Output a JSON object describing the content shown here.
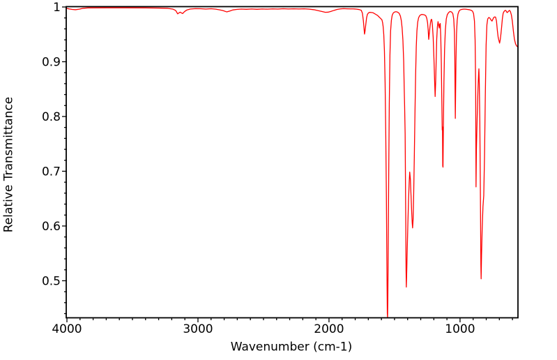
{
  "figure": {
    "background": "#ffffff",
    "frame_color": "#000000",
    "text_color": "#000000",
    "line_color": "#ff0000"
  },
  "chart_data": {
    "type": "line",
    "title": "",
    "xlabel": "Wavenumber (cm-1)",
    "ylabel": "Relative Transmittance",
    "grid": false,
    "legend": null,
    "x_axis": {
      "min": 558,
      "max": 4000,
      "reversed": true,
      "major_ticks": [
        4000,
        3000,
        2000,
        1000
      ],
      "major_tick_labels": [
        "4000",
        "3000",
        "2000",
        "1000"
      ],
      "minor_tick_step": 100
    },
    "y_axis": {
      "min": 0.433,
      "max": 1.0,
      "major_ticks": [
        1.0,
        0.9,
        0.8,
        0.7,
        0.6,
        0.5
      ],
      "major_tick_labels": [
        "1",
        "0.9",
        "0.8",
        "0.7",
        "0.6",
        "0.5"
      ],
      "minor_tick_step": 0.02
    },
    "series": [
      {
        "name": "ir-transmittance-spectrum",
        "color": "#ff0000",
        "points": [
          [
            4000,
            0.9975
          ],
          [
            3985,
            0.9965
          ],
          [
            3960,
            0.9955
          ],
          [
            3935,
            0.995
          ],
          [
            3905,
            0.996
          ],
          [
            3880,
            0.9975
          ],
          [
            3840,
            0.9983
          ],
          [
            3700,
            0.9985
          ],
          [
            3550,
            0.9985
          ],
          [
            3400,
            0.9983
          ],
          [
            3300,
            0.998
          ],
          [
            3230,
            0.9975
          ],
          [
            3190,
            0.996
          ],
          [
            3170,
            0.9935
          ],
          [
            3155,
            0.9875
          ],
          [
            3145,
            0.9892
          ],
          [
            3136,
            0.9905
          ],
          [
            3127,
            0.9893
          ],
          [
            3117,
            0.988
          ],
          [
            3103,
            0.9915
          ],
          [
            3085,
            0.9945
          ],
          [
            3060,
            0.9962
          ],
          [
            3020,
            0.997
          ],
          [
            2980,
            0.9968
          ],
          [
            2940,
            0.9962
          ],
          [
            2900,
            0.9968
          ],
          [
            2865,
            0.996
          ],
          [
            2835,
            0.9948
          ],
          [
            2810,
            0.9935
          ],
          [
            2780,
            0.991
          ],
          [
            2758,
            0.9925
          ],
          [
            2735,
            0.9945
          ],
          [
            2705,
            0.9955
          ],
          [
            2670,
            0.9962
          ],
          [
            2630,
            0.9958
          ],
          [
            2590,
            0.9963
          ],
          [
            2550,
            0.9958
          ],
          [
            2510,
            0.9963
          ],
          [
            2470,
            0.996
          ],
          [
            2430,
            0.9965
          ],
          [
            2390,
            0.9962
          ],
          [
            2350,
            0.9968
          ],
          [
            2310,
            0.9963
          ],
          [
            2270,
            0.9967
          ],
          [
            2230,
            0.9963
          ],
          [
            2190,
            0.9967
          ],
          [
            2150,
            0.996
          ],
          [
            2115,
            0.995
          ],
          [
            2080,
            0.9932
          ],
          [
            2050,
            0.9915
          ],
          [
            2028,
            0.9903
          ],
          [
            2008,
            0.9905
          ],
          [
            1988,
            0.9917
          ],
          [
            1963,
            0.9937
          ],
          [
            1938,
            0.9955
          ],
          [
            1913,
            0.9965
          ],
          [
            1888,
            0.997
          ],
          [
            1863,
            0.9967
          ],
          [
            1838,
            0.9965
          ],
          [
            1813,
            0.9965
          ],
          [
            1790,
            0.996
          ],
          [
            1770,
            0.9953
          ],
          [
            1754,
            0.994
          ],
          [
            1745,
            0.9885
          ],
          [
            1738,
            0.9755
          ],
          [
            1733,
            0.962
          ],
          [
            1729,
            0.9505
          ],
          [
            1725,
            0.956
          ],
          [
            1719,
            0.9685
          ],
          [
            1713,
            0.9805
          ],
          [
            1707,
            0.9865
          ],
          [
            1699,
            0.9892
          ],
          [
            1690,
            0.9902
          ],
          [
            1678,
            0.99
          ],
          [
            1665,
            0.9895
          ],
          [
            1652,
            0.9878
          ],
          [
            1640,
            0.986
          ],
          [
            1629,
            0.9845
          ],
          [
            1619,
            0.982
          ],
          [
            1611,
            0.9802
          ],
          [
            1603,
            0.9782
          ],
          [
            1596,
            0.9765
          ],
          [
            1591,
            0.9715
          ],
          [
            1587,
            0.9645
          ],
          [
            1582,
            0.9495
          ],
          [
            1577,
            0.9195
          ],
          [
            1572,
            0.8625
          ],
          [
            1567,
            0.772
          ],
          [
            1562,
            0.651
          ],
          [
            1558,
            0.52
          ],
          [
            1555,
            0.4405
          ],
          [
            1553,
            0.4325
          ],
          [
            1551,
            0.465
          ],
          [
            1548,
            0.565
          ],
          [
            1544,
            0.703
          ],
          [
            1540,
            0.822
          ],
          [
            1535,
            0.9115
          ],
          [
            1530,
            0.956
          ],
          [
            1524,
            0.9755
          ],
          [
            1518,
            0.9845
          ],
          [
            1511,
            0.9885
          ],
          [
            1504,
            0.9902
          ],
          [
            1494,
            0.9912
          ],
          [
            1484,
            0.9912
          ],
          [
            1474,
            0.9902
          ],
          [
            1464,
            0.9882
          ],
          [
            1455,
            0.9832
          ],
          [
            1448,
            0.975
          ],
          [
            1442,
            0.9615
          ],
          [
            1436,
            0.9395
          ],
          [
            1430,
            0.9005
          ],
          [
            1426,
            0.8505
          ],
          [
            1423,
            0.8205
          ],
          [
            1421,
            0.7935
          ],
          [
            1419,
            0.7685
          ],
          [
            1417,
            0.7005
          ],
          [
            1414,
            0.6005
          ],
          [
            1412,
            0.5205
          ],
          [
            1410,
            0.4885
          ],
          [
            1407,
            0.5145
          ],
          [
            1403,
            0.5565
          ],
          [
            1398,
            0.6055
          ],
          [
            1393,
            0.6475
          ],
          [
            1388,
            0.6805
          ],
          [
            1384,
            0.6985
          ],
          [
            1379,
            0.6855
          ],
          [
            1374,
            0.6555
          ],
          [
            1369,
            0.6255
          ],
          [
            1365,
            0.6055
          ],
          [
            1362,
            0.5965
          ],
          [
            1358,
            0.6125
          ],
          [
            1354,
            0.6555
          ],
          [
            1349,
            0.7255
          ],
          [
            1344,
            0.8055
          ],
          [
            1339,
            0.8755
          ],
          [
            1334,
            0.9275
          ],
          [
            1329,
            0.9565
          ],
          [
            1323,
            0.9725
          ],
          [
            1316,
            0.9805
          ],
          [
            1307,
            0.9845
          ],
          [
            1295,
            0.9862
          ],
          [
            1283,
            0.9862
          ],
          [
            1271,
            0.9855
          ],
          [
            1261,
            0.9838
          ],
          [
            1254,
            0.9795
          ],
          [
            1248,
            0.9715
          ],
          [
            1243,
            0.9575
          ],
          [
            1239,
            0.9408
          ],
          [
            1235,
            0.9505
          ],
          [
            1230,
            0.9625
          ],
          [
            1225,
            0.9722
          ],
          [
            1220,
            0.9772
          ],
          [
            1216,
            0.9772
          ],
          [
            1211,
            0.9672
          ],
          [
            1205,
            0.9445
          ],
          [
            1199,
            0.9045
          ],
          [
            1194,
            0.8645
          ],
          [
            1190,
            0.8365
          ],
          [
            1186,
            0.8625
          ],
          [
            1182,
            0.9025
          ],
          [
            1178,
            0.9415
          ],
          [
            1173,
            0.9635
          ],
          [
            1168,
            0.9732
          ],
          [
            1163,
            0.9665
          ],
          [
            1159,
            0.9615
          ],
          [
            1155,
            0.9685
          ],
          [
            1151,
            0.9698
          ],
          [
            1147,
            0.9445
          ],
          [
            1143,
            0.8985
          ],
          [
            1139,
            0.8285
          ],
          [
            1136,
            0.7755
          ],
          [
            1134,
            0.781
          ],
          [
            1132,
            0.7095
          ],
          [
            1130,
            0.7075
          ],
          [
            1127,
            0.7825
          ],
          [
            1123,
            0.8625
          ],
          [
            1118,
            0.9225
          ],
          [
            1112,
            0.9585
          ],
          [
            1105,
            0.9782
          ],
          [
            1097,
            0.9862
          ],
          [
            1087,
            0.9898
          ],
          [
            1076,
            0.9918
          ],
          [
            1064,
            0.9908
          ],
          [
            1055,
            0.9878
          ],
          [
            1048,
            0.9778
          ],
          [
            1043,
            0.9545
          ],
          [
            1040,
            0.9095
          ],
          [
            1038,
            0.8495
          ],
          [
            1036,
            0.7965
          ],
          [
            1034,
            0.8415
          ],
          [
            1031,
            0.9015
          ],
          [
            1027,
            0.9505
          ],
          [
            1022,
            0.9752
          ],
          [
            1016,
            0.9868
          ],
          [
            1008,
            0.9922
          ],
          [
            1000,
            0.9945
          ],
          [
            988,
            0.9955
          ],
          [
            974,
            0.996
          ],
          [
            960,
            0.996
          ],
          [
            945,
            0.9955
          ],
          [
            930,
            0.995
          ],
          [
            916,
            0.994
          ],
          [
            905,
            0.9925
          ],
          [
            897,
            0.988
          ],
          [
            890,
            0.9745
          ],
          [
            885,
            0.9395
          ],
          [
            881,
            0.8595
          ],
          [
            878,
            0.6715
          ],
          [
            875,
            0.7405
          ],
          [
            869,
            0.8005
          ],
          [
            863,
            0.8505
          ],
          [
            858,
            0.8795
          ],
          [
            856,
            0.887
          ],
          [
            853,
            0.8595
          ],
          [
            849,
            0.7895
          ],
          [
            845,
            0.6695
          ],
          [
            841,
            0.5295
          ],
          [
            839,
            0.5035
          ],
          [
            836,
            0.5455
          ],
          [
            831,
            0.5955
          ],
          [
            825,
            0.6355
          ],
          [
            819,
            0.6555
          ],
          [
            813,
            0.7305
          ],
          [
            807,
            0.8405
          ],
          [
            801,
            0.9305
          ],
          [
            795,
            0.9675
          ],
          [
            789,
            0.978
          ],
          [
            781,
            0.9808
          ],
          [
            773,
            0.9798
          ],
          [
            764,
            0.9765
          ],
          [
            756,
            0.9742
          ],
          [
            749,
            0.9778
          ],
          [
            743,
            0.9808
          ],
          [
            736,
            0.9818
          ],
          [
            729,
            0.9815
          ],
          [
            722,
            0.9745
          ],
          [
            715,
            0.9565
          ],
          [
            709,
            0.9445
          ],
          [
            703,
            0.9385
          ],
          [
            698,
            0.934
          ],
          [
            693,
            0.9405
          ],
          [
            688,
            0.9505
          ],
          [
            683,
            0.9625
          ],
          [
            677,
            0.9785
          ],
          [
            671,
            0.9885
          ],
          [
            665,
            0.9915
          ],
          [
            659,
            0.9932
          ],
          [
            653,
            0.9938
          ],
          [
            647,
            0.9922
          ],
          [
            641,
            0.9898
          ],
          [
            635,
            0.9908
          ],
          [
            628,
            0.9928
          ],
          [
            622,
            0.9938
          ],
          [
            615,
            0.9912
          ],
          [
            608,
            0.9852
          ],
          [
            601,
            0.9742
          ],
          [
            593,
            0.9562
          ],
          [
            585,
            0.9412
          ],
          [
            577,
            0.9332
          ],
          [
            570,
            0.9295
          ],
          [
            564,
            0.9278
          ],
          [
            558,
            0.927
          ]
        ]
      }
    ]
  }
}
